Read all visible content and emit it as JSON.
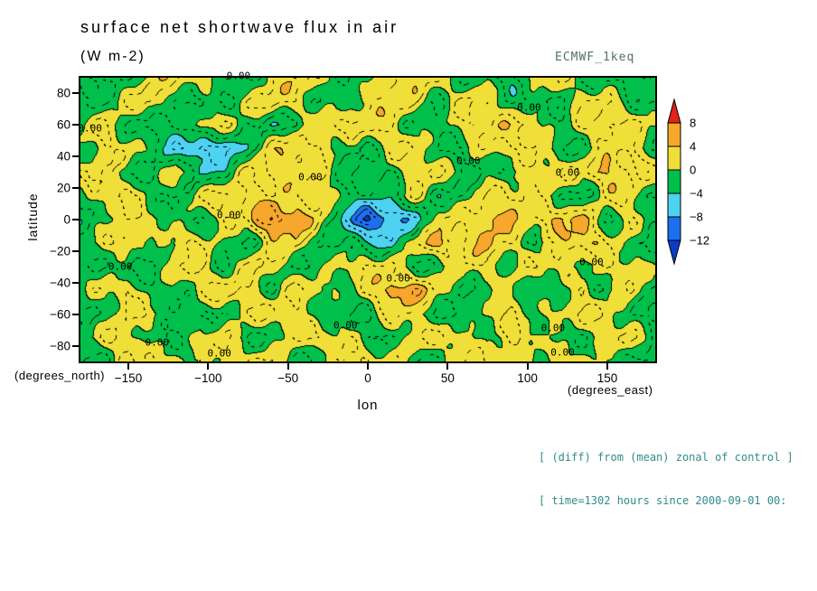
{
  "chart_data": {
    "type": "contour",
    "title": "surface net shortwave flux in air",
    "units_label": "(W m-2)",
    "dataset_label": "ECMWF_1keq",
    "xlabel": "lon",
    "ylabel": "latitude",
    "x_units_label": "(degrees_east)",
    "y_units_label": "(degrees_north)",
    "xlim": [
      -180,
      180
    ],
    "ylim": [
      -90,
      90
    ],
    "x_ticks": [
      -150,
      -100,
      -50,
      0,
      50,
      100,
      150
    ],
    "y_ticks": [
      80,
      60,
      40,
      20,
      0,
      -20,
      -40,
      -60,
      -80
    ],
    "levels": [
      -12,
      -8,
      -4,
      0,
      4,
      8
    ],
    "palette": [
      "#0a3cc8",
      "#1e6ff0",
      "#4dd2f2",
      "#00bf4a",
      "#f0df38",
      "#f6a72c",
      "#e42217"
    ],
    "colorbar": {
      "labels": [
        "8",
        "4",
        "0",
        "-4",
        "-8",
        "-12"
      ],
      "segment_colors_top_to_bottom": [
        "#f6a72c",
        "#f0df38",
        "#00bf4a",
        "#4dd2f2",
        "#1e6ff0"
      ],
      "arrow_top_color": "#e42217",
      "arrow_bottom_color": "#0a3cc8"
    },
    "annotations": [
      "[ (diff) from (mean) zonal of control ]",
      "[ time=1302 hours since 2000-09-01 00:"
    ],
    "contour_label_text": "0.00",
    "contour_labels": [
      {
        "lon": -81,
        "lat": 91
      },
      {
        "lon": -174,
        "lat": 58
      },
      {
        "lon": 101,
        "lat": 71
      },
      {
        "lon": 63,
        "lat": 37
      },
      {
        "lon": -36,
        "lat": 27
      },
      {
        "lon": 125,
        "lat": 30
      },
      {
        "lon": -87,
        "lat": 3
      },
      {
        "lon": -155,
        "lat": -30
      },
      {
        "lon": 19,
        "lat": -37
      },
      {
        "lon": 140,
        "lat": -27
      },
      {
        "lon": -14,
        "lat": -67
      },
      {
        "lon": -132,
        "lat": -78
      },
      {
        "lon": -93,
        "lat": -85
      },
      {
        "lon": 116,
        "lat": -69
      },
      {
        "lon": 122,
        "lat": -84
      }
    ],
    "grid": {
      "lon_start": -180,
      "lon_step": 15,
      "lat_start": 90,
      "lat_step": -15,
      "values": [
        [
          -3,
          -2,
          -2,
          2,
          3,
          2,
          -2,
          -3,
          2,
          3,
          2,
          -2,
          -2,
          3,
          3,
          2,
          -2,
          -2,
          -3,
          2,
          2,
          -2,
          -3,
          -3,
          -3
        ],
        [
          -3,
          -2,
          2,
          3,
          -2,
          -3,
          -2,
          2,
          3,
          2,
          -2,
          -2,
          2,
          3,
          2,
          -2,
          2,
          2,
          -2,
          -3,
          -2,
          2,
          2,
          -2,
          -3
        ],
        [
          1,
          2,
          -2,
          -3,
          -3,
          2,
          2,
          -2,
          -3,
          -3,
          2,
          3,
          3,
          2,
          -2,
          -2,
          2,
          2,
          3,
          2,
          -2,
          2,
          3,
          2,
          1
        ],
        [
          -2,
          2,
          2,
          -2,
          -5,
          -7,
          -7,
          -3,
          2,
          5,
          2,
          -2,
          -2,
          2,
          2,
          -2,
          -2,
          2,
          2,
          2,
          -2,
          -2,
          2,
          3,
          -2
        ],
        [
          2,
          2,
          -2,
          -2,
          2,
          -4,
          -3,
          2,
          3,
          3,
          2,
          -2,
          -2,
          -2,
          2,
          2,
          -2,
          -2,
          -2,
          2,
          2,
          2,
          5,
          2,
          2
        ],
        [
          -2,
          2,
          3,
          -2,
          -2,
          2,
          2,
          3,
          2,
          2,
          2,
          -2,
          -2,
          -3,
          2,
          -3,
          -2,
          2,
          3,
          2,
          -2,
          -3,
          2,
          2,
          -2
        ],
        [
          -2,
          -2,
          2,
          2,
          -2,
          -2,
          2,
          2,
          9,
          5,
          2,
          -5,
          -13,
          -8,
          -6,
          2,
          2,
          5,
          4,
          2,
          5,
          4,
          -2,
          2,
          -2
        ],
        [
          -2,
          2,
          2,
          -2,
          2,
          2,
          -2,
          -2,
          2,
          3,
          -2,
          -2,
          -3,
          -5,
          2,
          5,
          2,
          4,
          2,
          -2,
          2,
          5,
          2,
          -2,
          -2
        ],
        [
          -1,
          -2,
          -3,
          -2,
          2,
          2,
          -2,
          2,
          2,
          -2,
          -2,
          2,
          2,
          2,
          -2,
          -2,
          2,
          2,
          -2,
          2,
          2,
          -2,
          2,
          2,
          -1
        ],
        [
          -2,
          2,
          2,
          -2,
          -2,
          2,
          3,
          2,
          -2,
          2,
          2,
          -2,
          2,
          6,
          5,
          2,
          -2,
          -2,
          2,
          -2,
          -2,
          2,
          -2,
          2,
          -2
        ],
        [
          -2,
          -2,
          2,
          2,
          -2,
          -2,
          -2,
          2,
          2,
          2,
          -2,
          -2,
          -2,
          2,
          2,
          -3,
          -3,
          2,
          2,
          -2,
          2,
          2,
          2,
          -2,
          -2
        ],
        [
          -2,
          2,
          2,
          -2,
          -3,
          2,
          2,
          -2,
          -2,
          2,
          2,
          2,
          -2,
          -2,
          2,
          2,
          2,
          -2,
          2,
          2,
          -2,
          -2,
          2,
          2,
          -2
        ],
        [
          -2,
          -2,
          2,
          2,
          2,
          -2,
          2,
          2,
          2,
          -2,
          -2,
          2,
          2,
          2,
          -2,
          -2,
          2,
          2,
          2,
          -2,
          2,
          2,
          -2,
          -2,
          -2
        ]
      ]
    }
  }
}
